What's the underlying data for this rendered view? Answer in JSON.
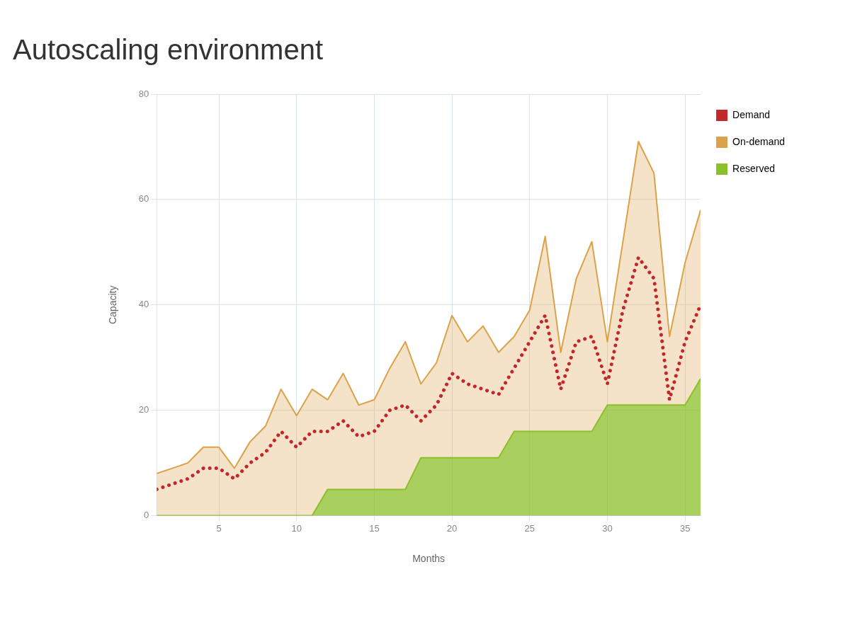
{
  "chart_data": {
    "type": "area",
    "title": "Autoscaling environment",
    "xlabel": "Months",
    "ylabel": "Capacity",
    "x": [
      1,
      2,
      3,
      4,
      5,
      6,
      7,
      8,
      9,
      10,
      11,
      12,
      13,
      14,
      15,
      16,
      17,
      18,
      19,
      20,
      21,
      22,
      23,
      24,
      25,
      26,
      27,
      28,
      29,
      30,
      31,
      32,
      33,
      34,
      35,
      36
    ],
    "xlim": [
      1,
      36
    ],
    "xticks": [
      5,
      10,
      15,
      20,
      25,
      30,
      35
    ],
    "ylim": [
      0,
      80
    ],
    "yticks": [
      0,
      20,
      40,
      60,
      80
    ],
    "stacked": true,
    "grid": true,
    "legend": "top right",
    "marker": "none",
    "series": [
      {
        "name": "Reserved",
        "color": "#8cbf2a",
        "values": [
          0,
          0,
          0,
          0,
          0,
          0,
          0,
          0,
          0,
          0,
          0,
          5,
          5,
          5,
          5,
          5,
          5,
          11,
          11,
          11,
          11,
          11,
          11,
          16,
          16,
          16,
          16,
          16,
          16,
          21,
          21,
          21,
          21,
          21,
          21,
          26
        ]
      },
      {
        "name": "On-demand",
        "color": "#dba24a",
        "values": [
          8,
          9,
          10,
          13,
          13,
          9,
          14,
          17,
          24,
          19,
          24,
          17,
          22,
          16,
          17,
          23,
          28,
          14,
          18,
          27,
          22,
          25,
          20,
          18,
          23,
          37,
          15,
          29,
          36,
          12,
          31,
          50,
          44,
          13,
          27,
          32
        ]
      },
      {
        "name": "Demand",
        "type": "line",
        "line_style": "dotted",
        "color": "#c0282a",
        "values": [
          5,
          6,
          7,
          9,
          9,
          7,
          10,
          12,
          16,
          13,
          16,
          16,
          18,
          15,
          16,
          20,
          21,
          18,
          21,
          27,
          25,
          24,
          23,
          28,
          33,
          38,
          24,
          33,
          34,
          25,
          39,
          49,
          45,
          22,
          33,
          40
        ]
      }
    ]
  }
}
